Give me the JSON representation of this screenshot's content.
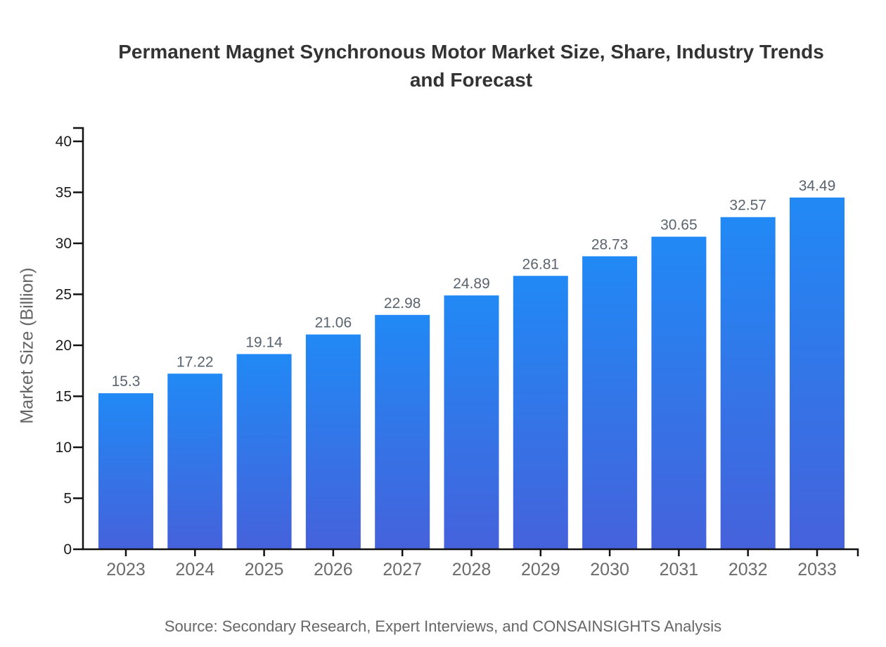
{
  "chart_data": {
    "type": "bar",
    "title": "Permanent Magnet Synchronous Motor Market Size, Share, Industry Trends and Forecast",
    "ylabel": "Market Size (Billion)",
    "xlabel": "",
    "categories": [
      "2023",
      "2024",
      "2025",
      "2026",
      "2027",
      "2028",
      "2029",
      "2030",
      "2031",
      "2032",
      "2033"
    ],
    "values": [
      15.3,
      17.22,
      19.14,
      21.06,
      22.98,
      24.89,
      26.81,
      28.73,
      30.65,
      32.57,
      34.49
    ],
    "value_labels": [
      "15.3",
      "17.22",
      "19.14",
      "21.06",
      "22.98",
      "24.89",
      "26.81",
      "28.73",
      "30.65",
      "32.57",
      "34.49"
    ],
    "ylim": [
      0,
      40
    ],
    "yticks": [
      0,
      5,
      10,
      15,
      20,
      25,
      30,
      35,
      40
    ],
    "grid": false,
    "legend_position": "none",
    "colors": {
      "bar_gradient_top": "#2189F5",
      "bar_gradient_bottom": "#4562DB",
      "axis": "#111111",
      "title_text": "#333333",
      "label_text": "#666666"
    },
    "source_note": "Source: Secondary Research, Expert Interviews, and CONSAINSIGHTS Analysis"
  }
}
